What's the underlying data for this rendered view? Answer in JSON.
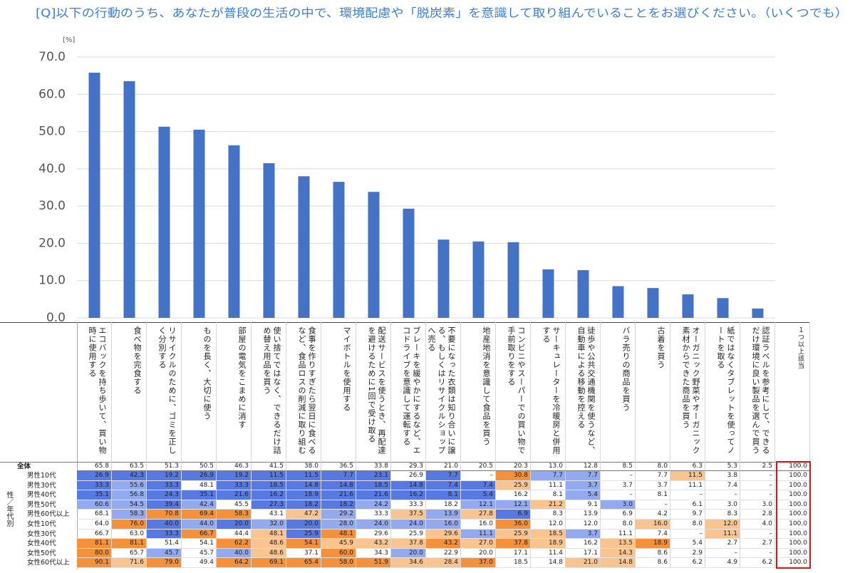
{
  "chart_data": {
    "type": "bar",
    "title": "[Q]以下の行動のうち、あなたが普段の生活の中で、環境配慮や「脱炭素」を意識して取り組んでいることをお選びください。（いくつでも）",
    "y_unit": "[%]",
    "categories": [
      "エコバックを持ち歩いて、買い物時に使用する",
      "食べ物を完食する",
      "リサイクルのために、ゴミを正しく分別する",
      "ものを長く、大切に使う",
      "部屋の電気をこまめに消す",
      "使い捨てではなく、できるだけ詰め替え用品を買う",
      "食事を作りすぎたら翌日に食べるなど、食品ロスの削減に取り組む",
      "マイボトルを使用する",
      "配送サービスを使うとき、再配達を避けるために1回で受け取る",
      "ブレーキを緩やかにするなど、エコドライブを意識して運転する",
      "不要になった衣類は知り合いに譲る、もしくはリサイクルショップへ売る",
      "地産地消を意識して食品を買う",
      "コンビニやスーパーでの買い物で手前取りをする",
      "サーキュレーターを冷暖房と併用する",
      "徒歩や公共交通機関を使うなど、自動車による移動を控える",
      "バラ売りの商品を買う",
      "古着を買う",
      "オーガニック野菜やオーガニック素材からできた商品を買う",
      "紙ではなくタブレットを使ってノートを取る",
      "認証ラベルを参考にして、できるだけ環境に良い製品を選んで買う"
    ],
    "values": [
      65.8,
      63.5,
      51.3,
      50.5,
      46.3,
      41.5,
      38.0,
      36.5,
      33.8,
      29.3,
      21.0,
      20.5,
      20.3,
      13.0,
      12.8,
      8.5,
      8.0,
      6.3,
      5.3,
      2.5
    ],
    "value_labels": [
      "65.8",
      "63.5",
      "51.3",
      "50.5",
      "46.3",
      "41.5",
      "38.0",
      "36.5",
      "33.8",
      "29.3",
      "21.0",
      "20.5",
      "20.3",
      "13.0",
      "12.8",
      "8.5",
      "8.0",
      "6.3",
      "5.3",
      "2.5"
    ],
    "color": "#4472c4",
    "ylim": [
      0,
      70
    ],
    "yticks": [
      {
        "value": 0,
        "label": "0.0"
      },
      {
        "value": 10,
        "label": "10.0"
      },
      {
        "value": 20,
        "label": "20.0"
      },
      {
        "value": 30,
        "label": "30.0"
      },
      {
        "value": 40,
        "label": "40.0"
      },
      {
        "value": 50,
        "label": "50.0"
      },
      {
        "value": 60,
        "label": "60.0"
      },
      {
        "value": 70,
        "label": "70.0"
      }
    ],
    "grid": true
  },
  "table": {
    "group_label": "性／年代別",
    "total_label": "全体",
    "extra_header": "１つ以上該当",
    "extra_total": "100.0",
    "rows": [
      {
        "label": "男性10代",
        "cells": [
          "26.9",
          "42.3",
          "19.2",
          "26.9",
          "19.2",
          "11.5",
          "11.5",
          "7.7",
          "23.1",
          "26.9",
          "7.7",
          "–",
          "30.8",
          "7.7",
          "7.7",
          "–",
          "7.7",
          "11.5",
          "3.8",
          "–",
          "100.0"
        ]
      },
      {
        "label": "男性30代",
        "cells": [
          "33.3",
          "55.6",
          "33.3",
          "48.1",
          "33.3",
          "18.5",
          "14.8",
          "14.8",
          "18.5",
          "14.8",
          "7.4",
          "7.4",
          "25.9",
          "11.1",
          "3.7",
          "3.7",
          "3.7",
          "11.1",
          "7.4",
          "–",
          "100.0"
        ]
      },
      {
        "label": "男性40代",
        "cells": [
          "35.1",
          "56.8",
          "24.3",
          "35.1",
          "21.6",
          "16.2",
          "18.9",
          "21.6",
          "21.6",
          "16.2",
          "8.1",
          "5.4",
          "16.2",
          "8.1",
          "5.4",
          "–",
          "8.1",
          "–",
          "–",
          "–",
          "100.0"
        ]
      },
      {
        "label": "男性50代",
        "cells": [
          "60.6",
          "54.5",
          "39.4",
          "42.4",
          "45.5",
          "27.3",
          "18.2",
          "18.2",
          "24.2",
          "33.3",
          "18.2",
          "12.1",
          "12.1",
          "21.2",
          "9.1",
          "3.0",
          "–",
          "6.1",
          "3.0",
          "3.0",
          "100.0"
        ]
      },
      {
        "label": "男性60代以上",
        "cells": [
          "68.1",
          "58.3",
          "70.8",
          "69.4",
          "58.3",
          "43.1",
          "47.2",
          "29.2",
          "33.3",
          "37.5",
          "13.9",
          "27.8",
          "6.9",
          "8.3",
          "13.9",
          "6.9",
          "4.2",
          "9.7",
          "8.3",
          "2.8",
          "100.0"
        ]
      },
      {
        "label": "女性10代",
        "cells": [
          "64.0",
          "76.0",
          "40.0",
          "44.0",
          "20.0",
          "32.0",
          "20.0",
          "28.0",
          "24.0",
          "24.0",
          "16.0",
          "16.0",
          "36.0",
          "12.0",
          "12.0",
          "8.0",
          "16.0",
          "8.0",
          "12.0",
          "4.0",
          "100.0"
        ]
      },
      {
        "label": "女性30代",
        "cells": [
          "66.7",
          "63.0",
          "33.3",
          "66.7",
          "44.4",
          "48.1",
          "25.9",
          "48.1",
          "29.6",
          "25.9",
          "29.6",
          "11.1",
          "25.9",
          "18.5",
          "3.7",
          "11.1",
          "7.4",
          "–",
          "11.1",
          "–",
          "100.0"
        ]
      },
      {
        "label": "女性40代",
        "cells": [
          "81.1",
          "81.1",
          "51.4",
          "54.1",
          "62.2",
          "48.6",
          "54.1",
          "45.9",
          "43.2",
          "37.8",
          "43.2",
          "27.0",
          "37.8",
          "18.9",
          "16.2",
          "13.5",
          "18.9",
          "5.4",
          "2.7",
          "2.7",
          "100.0"
        ]
      },
      {
        "label": "女性50代",
        "cells": [
          "80.0",
          "65.7",
          "45.7",
          "45.7",
          "40.0",
          "48.6",
          "37.1",
          "60.0",
          "34.3",
          "20.0",
          "22.9",
          "20.0",
          "17.1",
          "11.4",
          "17.1",
          "14.3",
          "8.6",
          "2.9",
          "–",
          "–",
          "100.0"
        ]
      },
      {
        "label": "女性60代以上",
        "cells": [
          "90.1",
          "71.6",
          "79.0",
          "49.4",
          "64.2",
          "69.1",
          "65.4",
          "58.0",
          "51.9",
          "34.6",
          "28.4",
          "37.0",
          "18.5",
          "14.8",
          "21.0",
          "14.8",
          "8.6",
          "6.2",
          "4.9",
          "6.2",
          "100.0"
        ]
      }
    ]
  }
}
